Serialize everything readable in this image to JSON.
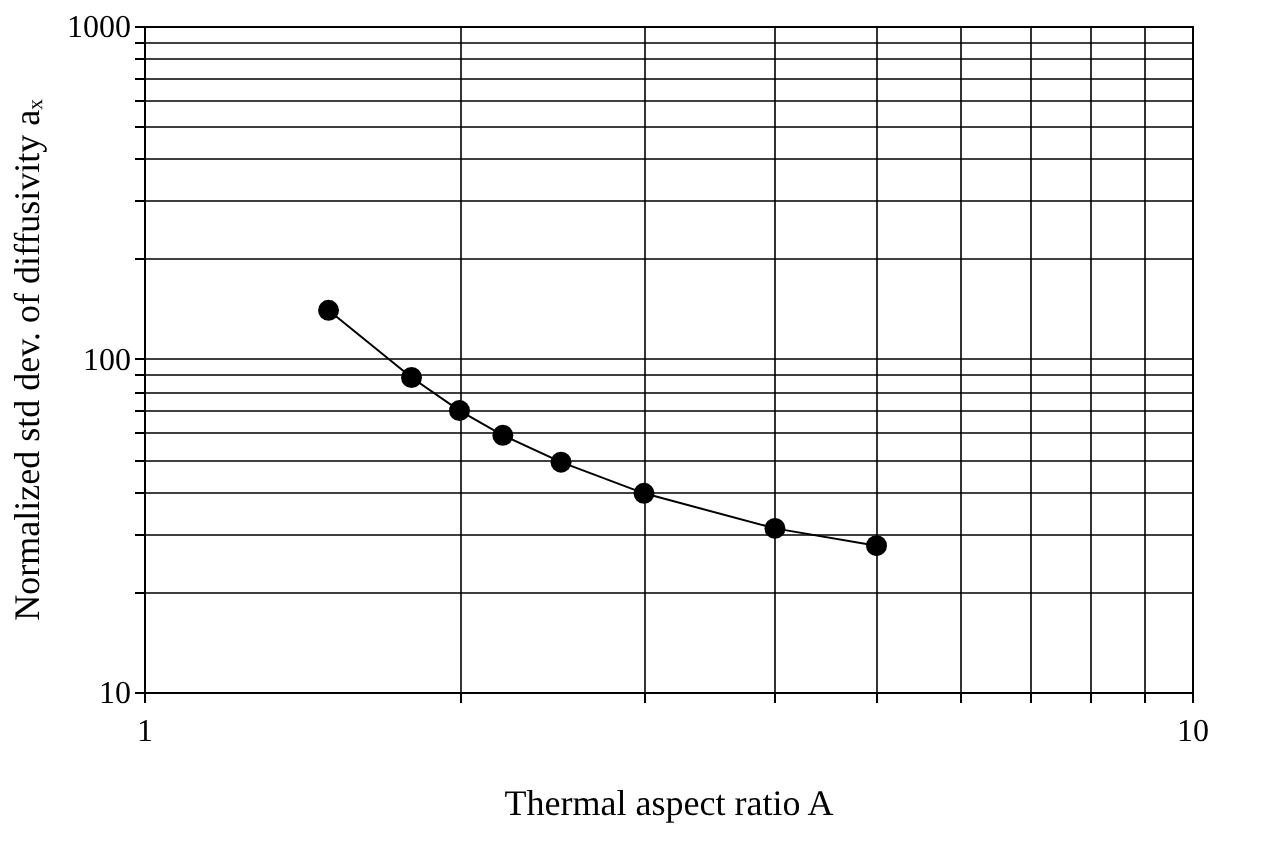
{
  "chart_data": {
    "type": "line",
    "xlabel": "Thermal aspect ratio A",
    "ylabel": "Normalized std dev. of diffusivity aₓ",
    "x": [
      1.5,
      1.8,
      2,
      2.2,
      2.5,
      3,
      4,
      5
    ],
    "series": [
      {
        "color": "#000000",
        "values": [
          140,
          88,
          70,
          59,
          49,
          39.5,
          31,
          27.5
        ]
      }
    ],
    "log": "xy",
    "xlim": [
      1,
      10
    ],
    "ylim": [
      10,
      1000
    ],
    "xticks": [
      1,
      {
        "value": 2,
        "label": null
      },
      {
        "value": 3,
        "label": null
      },
      {
        "value": 4,
        "label": null
      },
      {
        "value": 5,
        "label": null
      },
      {
        "value": 6,
        "label": null
      },
      {
        "value": 7,
        "label": null
      },
      {
        "value": 8,
        "label": null
      },
      {
        "value": 9,
        "label": null
      },
      10
    ],
    "yticks": [
      10,
      {
        "value": 20,
        "label": null
      },
      {
        "value": 30,
        "label": null
      },
      {
        "value": 40,
        "label": null
      },
      {
        "value": 50,
        "label": null
      },
      {
        "value": 60,
        "label": null
      },
      {
        "value": 70,
        "label": null
      },
      {
        "value": 80,
        "label": null
      },
      {
        "value": 90,
        "label": null
      },
      100,
      {
        "value": 200,
        "label": null
      },
      {
        "value": 300,
        "label": null
      },
      {
        "value": 400,
        "label": null
      },
      {
        "value": 500,
        "label": null
      },
      {
        "value": 600,
        "label": null
      },
      {
        "value": 700,
        "label": null
      },
      {
        "value": 800,
        "label": null
      },
      {
        "value": 900,
        "label": null
      },
      1000
    ],
    "grid": true,
    "marker": "circle",
    "line_style": "solid"
  }
}
